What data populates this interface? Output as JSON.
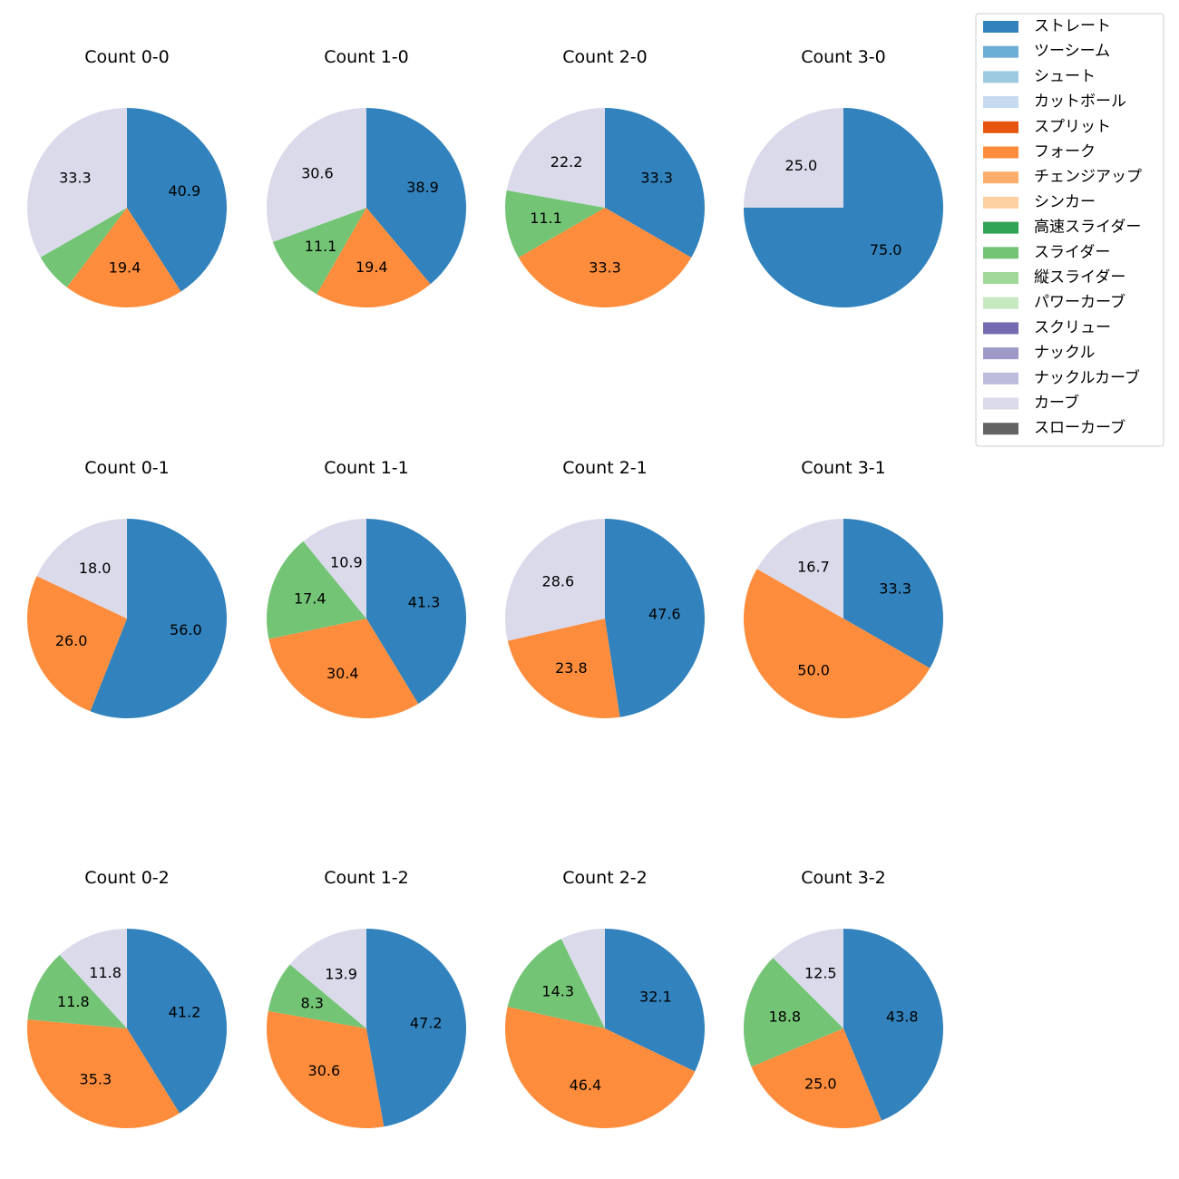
{
  "chart_data": {
    "type": "pie",
    "legend_position": "top-right",
    "legend": [
      {
        "name": "ストレート",
        "color": "#3182bd"
      },
      {
        "name": "ツーシーム",
        "color": "#6baed6"
      },
      {
        "name": "シュート",
        "color": "#9ecae1"
      },
      {
        "name": "カットボール",
        "color": "#c6dbef"
      },
      {
        "name": "スプリット",
        "color": "#e6550d"
      },
      {
        "name": "フォーク",
        "color": "#fd8d3c"
      },
      {
        "name": "チェンジアップ",
        "color": "#fdae6b"
      },
      {
        "name": "シンカー",
        "color": "#fdd0a2"
      },
      {
        "name": "高速スライダー",
        "color": "#31a354"
      },
      {
        "name": "スライダー",
        "color": "#74c476"
      },
      {
        "name": "縦スライダー",
        "color": "#a1d99b"
      },
      {
        "name": "パワーカーブ",
        "color": "#c7e9c0"
      },
      {
        "name": "スクリュー",
        "color": "#756bb1"
      },
      {
        "name": "ナックル",
        "color": "#9e9ac8"
      },
      {
        "name": "ナックルカーブ",
        "color": "#bcbddc"
      },
      {
        "name": "カーブ",
        "color": "#dadaeb"
      },
      {
        "name": "スローカーブ",
        "color": "#636363"
      }
    ],
    "charts": [
      {
        "title": "Count 0-0",
        "slices": [
          {
            "pitch": "ストレート",
            "value": 40.9,
            "label": "40.9"
          },
          {
            "pitch": "フォーク",
            "value": 19.4,
            "label": "19.4"
          },
          {
            "pitch": "スライダー",
            "value": 6.4,
            "label": ""
          },
          {
            "pitch": "カーブ",
            "value": 33.3,
            "label": "33.3"
          }
        ]
      },
      {
        "title": "Count 1-0",
        "slices": [
          {
            "pitch": "ストレート",
            "value": 38.9,
            "label": "38.9"
          },
          {
            "pitch": "フォーク",
            "value": 19.4,
            "label": "19.4"
          },
          {
            "pitch": "スライダー",
            "value": 11.1,
            "label": "11.1"
          },
          {
            "pitch": "カーブ",
            "value": 30.6,
            "label": "30.6"
          }
        ]
      },
      {
        "title": "Count 2-0",
        "slices": [
          {
            "pitch": "ストレート",
            "value": 33.3,
            "label": "33.3"
          },
          {
            "pitch": "フォーク",
            "value": 33.3,
            "label": "33.3"
          },
          {
            "pitch": "スライダー",
            "value": 11.1,
            "label": "11.1"
          },
          {
            "pitch": "カーブ",
            "value": 22.2,
            "label": "22.2"
          }
        ]
      },
      {
        "title": "Count 3-0",
        "slices": [
          {
            "pitch": "ストレート",
            "value": 75.0,
            "label": "75.0"
          },
          {
            "pitch": "カーブ",
            "value": 25.0,
            "label": "25.0"
          }
        ]
      },
      {
        "title": "Count 0-1",
        "slices": [
          {
            "pitch": "ストレート",
            "value": 56.0,
            "label": "56.0"
          },
          {
            "pitch": "フォーク",
            "value": 26.0,
            "label": "26.0"
          },
          {
            "pitch": "カーブ",
            "value": 18.0,
            "label": "18.0"
          }
        ]
      },
      {
        "title": "Count 1-1",
        "slices": [
          {
            "pitch": "ストレート",
            "value": 41.3,
            "label": "41.3"
          },
          {
            "pitch": "フォーク",
            "value": 30.4,
            "label": "30.4"
          },
          {
            "pitch": "スライダー",
            "value": 17.4,
            "label": "17.4"
          },
          {
            "pitch": "カーブ",
            "value": 10.9,
            "label": "10.9"
          }
        ]
      },
      {
        "title": "Count 2-1",
        "slices": [
          {
            "pitch": "ストレート",
            "value": 47.6,
            "label": "47.6"
          },
          {
            "pitch": "フォーク",
            "value": 23.8,
            "label": "23.8"
          },
          {
            "pitch": "カーブ",
            "value": 28.6,
            "label": "28.6"
          }
        ]
      },
      {
        "title": "Count 3-1",
        "slices": [
          {
            "pitch": "ストレート",
            "value": 33.3,
            "label": "33.3"
          },
          {
            "pitch": "フォーク",
            "value": 50.0,
            "label": "50.0"
          },
          {
            "pitch": "カーブ",
            "value": 16.7,
            "label": "16.7"
          }
        ]
      },
      {
        "title": "Count 0-2",
        "slices": [
          {
            "pitch": "ストレート",
            "value": 41.2,
            "label": "41.2"
          },
          {
            "pitch": "フォーク",
            "value": 35.3,
            "label": "35.3"
          },
          {
            "pitch": "スライダー",
            "value": 11.8,
            "label": "11.8"
          },
          {
            "pitch": "カーブ",
            "value": 11.8,
            "label": "11.8"
          }
        ]
      },
      {
        "title": "Count 1-2",
        "slices": [
          {
            "pitch": "ストレート",
            "value": 47.2,
            "label": "47.2"
          },
          {
            "pitch": "フォーク",
            "value": 30.6,
            "label": "30.6"
          },
          {
            "pitch": "スライダー",
            "value": 8.3,
            "label": "8.3"
          },
          {
            "pitch": "カーブ",
            "value": 13.9,
            "label": "13.9"
          }
        ]
      },
      {
        "title": "Count 2-2",
        "slices": [
          {
            "pitch": "ストレート",
            "value": 32.1,
            "label": "32.1"
          },
          {
            "pitch": "フォーク",
            "value": 46.4,
            "label": "46.4"
          },
          {
            "pitch": "スライダー",
            "value": 14.3,
            "label": "14.3"
          },
          {
            "pitch": "カーブ",
            "value": 7.2,
            "label": ""
          }
        ]
      },
      {
        "title": "Count 3-2",
        "slices": [
          {
            "pitch": "ストレート",
            "value": 43.8,
            "label": "43.8"
          },
          {
            "pitch": "フォーク",
            "value": 25.0,
            "label": "25.0"
          },
          {
            "pitch": "スライダー",
            "value": 18.8,
            "label": "18.8"
          },
          {
            "pitch": "カーブ",
            "value": 12.5,
            "label": "12.5"
          }
        ]
      }
    ]
  }
}
